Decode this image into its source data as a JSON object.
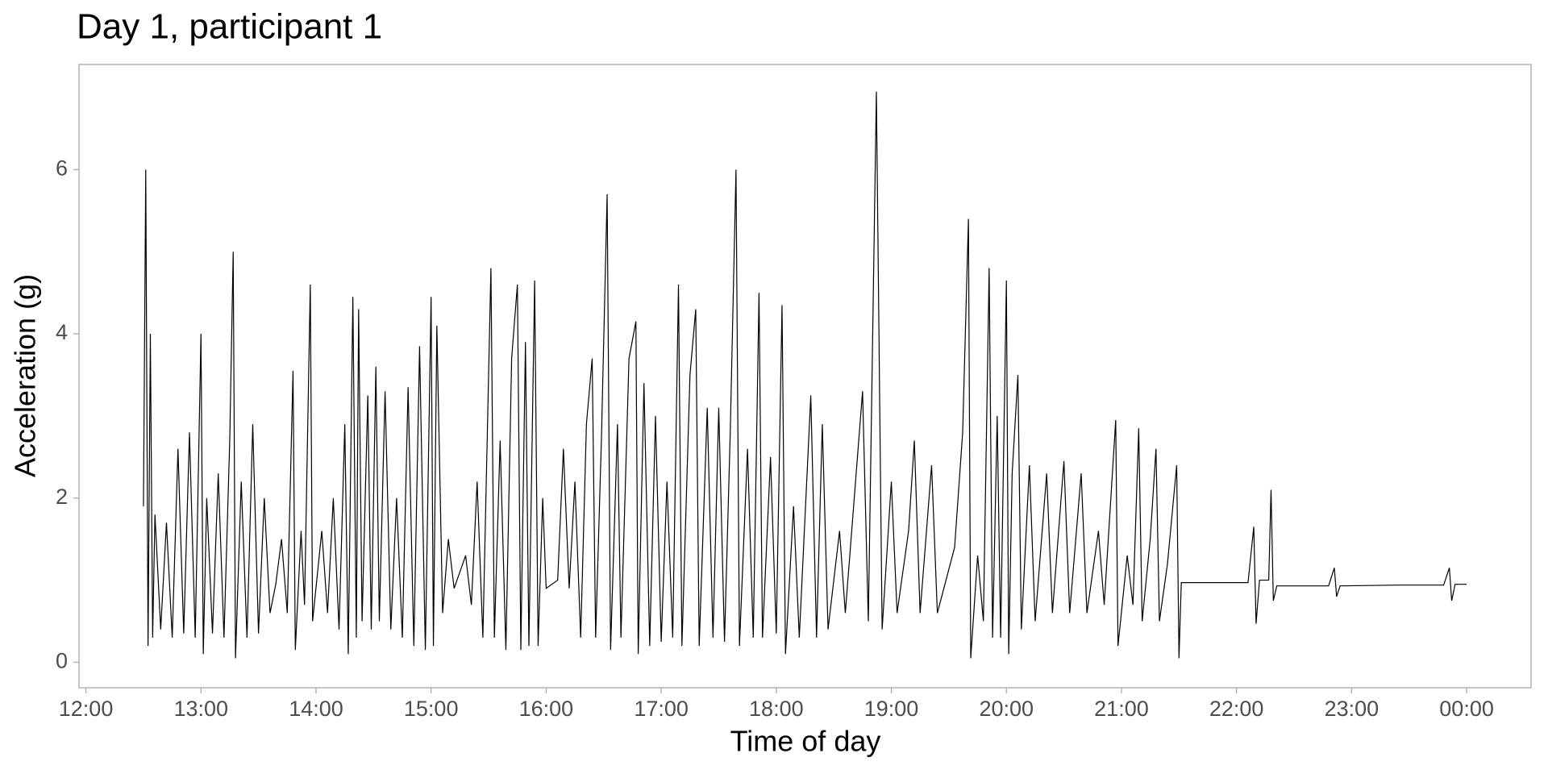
{
  "chart_data": {
    "type": "line",
    "title": "Day 1, participant 1",
    "x_label": "Time of day",
    "y_label": "Acceleration (g)",
    "xlim": [
      11.94,
      24.56
    ],
    "ylim": [
      -0.31,
      7.28
    ],
    "xticks": [
      {
        "value": 12,
        "label": "12:00"
      },
      {
        "value": 13,
        "label": "13:00"
      },
      {
        "value": 14,
        "label": "14:00"
      },
      {
        "value": 15,
        "label": "15:00"
      },
      {
        "value": 16,
        "label": "16:00"
      },
      {
        "value": 17,
        "label": "17:00"
      },
      {
        "value": 18,
        "label": "18:00"
      },
      {
        "value": 19,
        "label": "19:00"
      },
      {
        "value": 20,
        "label": "20:00"
      },
      {
        "value": 21,
        "label": "21:00"
      },
      {
        "value": 22,
        "label": "22:00"
      },
      {
        "value": 23,
        "label": "23:00"
      },
      {
        "value": 24,
        "label": "00:00"
      }
    ],
    "yticks": [
      0,
      2,
      4,
      6
    ],
    "grid": false,
    "color": "#000000",
    "x": [
      12.5,
      12.52,
      12.54,
      12.56,
      12.58,
      12.6,
      12.65,
      12.7,
      12.75,
      12.8,
      12.85,
      12.9,
      12.95,
      13.0,
      13.02,
      13.05,
      13.1,
      13.15,
      13.2,
      13.25,
      13.28,
      13.3,
      13.35,
      13.4,
      13.45,
      13.5,
      13.55,
      13.6,
      13.65,
      13.7,
      13.75,
      13.8,
      13.82,
      13.87,
      13.9,
      13.95,
      13.97,
      14.05,
      14.1,
      14.15,
      14.2,
      14.25,
      14.28,
      14.32,
      14.35,
      14.37,
      14.4,
      14.45,
      14.48,
      14.52,
      14.55,
      14.6,
      14.65,
      14.7,
      14.75,
      14.8,
      14.85,
      14.9,
      14.95,
      15.0,
      15.02,
      15.05,
      15.1,
      15.15,
      15.2,
      15.3,
      15.35,
      15.4,
      15.45,
      15.52,
      15.55,
      15.6,
      15.65,
      15.7,
      15.75,
      15.78,
      15.82,
      15.85,
      15.9,
      15.93,
      15.97,
      16.0,
      16.1,
      16.15,
      16.2,
      16.25,
      16.3,
      16.35,
      16.4,
      16.43,
      16.48,
      16.53,
      16.56,
      16.62,
      16.65,
      16.72,
      16.78,
      16.8,
      16.85,
      16.9,
      16.95,
      17.0,
      17.05,
      17.1,
      17.15,
      17.18,
      17.25,
      17.3,
      17.33,
      17.4,
      17.45,
      17.5,
      17.55,
      17.6,
      17.65,
      17.68,
      17.75,
      17.8,
      17.85,
      17.88,
      17.95,
      18.0,
      18.05,
      18.08,
      18.15,
      18.2,
      18.3,
      18.35,
      18.4,
      18.45,
      18.55,
      18.6,
      18.75,
      18.8,
      18.87,
      18.9,
      18.92,
      19.0,
      19.05,
      19.15,
      19.2,
      19.25,
      19.35,
      19.4,
      19.55,
      19.62,
      19.67,
      19.69,
      19.75,
      19.8,
      19.85,
      19.88,
      19.92,
      19.95,
      20.0,
      20.02,
      20.05,
      20.1,
      20.13,
      20.2,
      20.25,
      20.35,
      20.4,
      20.5,
      20.55,
      20.65,
      20.7,
      20.8,
      20.85,
      20.95,
      20.97,
      21.05,
      21.1,
      21.15,
      21.18,
      21.25,
      21.3,
      21.33,
      21.4,
      21.48,
      21.5,
      21.52,
      21.8,
      22.1,
      22.15,
      22.17,
      22.2,
      22.28,
      22.3,
      22.32,
      22.35,
      22.8,
      22.85,
      22.87,
      22.9,
      23.4,
      23.8,
      23.85,
      23.87,
      23.9,
      24.0
    ],
    "values": [
      1.9,
      6.0,
      0.2,
      4.0,
      0.3,
      1.8,
      0.4,
      1.7,
      0.3,
      2.6,
      0.35,
      2.8,
      0.3,
      4.0,
      0.1,
      2.0,
      0.35,
      2.3,
      0.3,
      2.7,
      5.0,
      0.05,
      2.2,
      0.3,
      2.9,
      0.35,
      2.0,
      0.6,
      0.95,
      1.5,
      0.6,
      3.55,
      0.15,
      1.6,
      0.7,
      4.6,
      0.5,
      1.6,
      0.6,
      2.0,
      0.4,
      2.9,
      0.1,
      4.45,
      0.3,
      4.3,
      0.5,
      3.25,
      0.4,
      3.6,
      0.5,
      3.3,
      0.4,
      2.0,
      0.3,
      3.35,
      0.2,
      3.85,
      0.15,
      4.45,
      0.2,
      4.1,
      0.6,
      1.5,
      0.9,
      1.3,
      0.7,
      2.2,
      0.3,
      4.8,
      0.3,
      2.7,
      0.15,
      3.7,
      4.6,
      0.15,
      3.9,
      0.2,
      4.65,
      0.2,
      2.0,
      0.9,
      1.0,
      2.6,
      0.9,
      2.2,
      0.3,
      2.9,
      3.7,
      0.3,
      2.7,
      5.7,
      0.15,
      2.9,
      0.3,
      3.7,
      4.15,
      0.1,
      3.4,
      0.2,
      3.0,
      0.25,
      2.2,
      0.3,
      4.6,
      0.2,
      3.5,
      4.3,
      0.2,
      3.1,
      0.3,
      3.1,
      0.25,
      2.8,
      6.0,
      0.2,
      2.6,
      0.3,
      4.5,
      0.3,
      2.5,
      0.35,
      4.35,
      0.1,
      1.9,
      0.3,
      3.25,
      0.3,
      2.9,
      0.4,
      1.6,
      0.6,
      3.3,
      0.5,
      6.95,
      3.0,
      0.4,
      2.2,
      0.6,
      1.6,
      2.7,
      0.6,
      2.4,
      0.6,
      1.4,
      2.8,
      5.4,
      0.05,
      1.3,
      0.5,
      4.8,
      0.3,
      3.0,
      0.3,
      4.65,
      0.1,
      2.3,
      3.5,
      0.4,
      2.4,
      0.5,
      2.3,
      0.6,
      2.45,
      0.6,
      2.3,
      0.6,
      1.6,
      0.7,
      2.95,
      0.2,
      1.3,
      0.7,
      2.85,
      0.5,
      1.5,
      2.6,
      0.5,
      1.2,
      2.4,
      0.05,
      0.97,
      0.97,
      0.97,
      1.65,
      0.47,
      1.0,
      1.0,
      2.1,
      0.75,
      0.93,
      0.93,
      1.15,
      0.8,
      0.93,
      0.94,
      0.94,
      1.15,
      0.75,
      0.95,
      0.95
    ]
  }
}
